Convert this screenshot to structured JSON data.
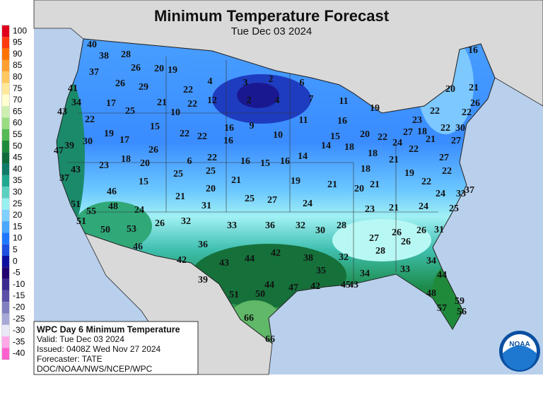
{
  "header": {
    "title": "Minimum Temperature Forecast",
    "subtitle": "Tue Dec 03 2024"
  },
  "legend": {
    "labels": [
      100,
      95,
      90,
      85,
      80,
      75,
      70,
      65,
      60,
      55,
      50,
      45,
      40,
      35,
      30,
      25,
      20,
      15,
      10,
      5,
      0,
      -5,
      -10,
      -15,
      -20,
      -25,
      -30,
      -35,
      -40
    ],
    "colors": [
      "#e0001c",
      "#ff3a10",
      "#ff7400",
      "#ffa030",
      "#ffc860",
      "#ffe89a",
      "#ffffd0",
      "#cdf0b0",
      "#99dd80",
      "#55bb55",
      "#1f8a3a",
      "#0f6b3a",
      "#127a6a",
      "#20a890",
      "#5cd0c0",
      "#99f0f0",
      "#7fd0ff",
      "#4aa8ff",
      "#1f78ff",
      "#1f50e0",
      "#1010a0",
      "#200070",
      "#3a2a90",
      "#5a50a8",
      "#8080c0",
      "#a8a8d8",
      "#e8e8f8",
      "#ffa8e8",
      "#ff60d0"
    ]
  },
  "stations": [
    40,
    38,
    28,
    37,
    26,
    20,
    19,
    41,
    26,
    29,
    22,
    4,
    3,
    2,
    6,
    34,
    17,
    21,
    22,
    12,
    2,
    4,
    7,
    11,
    43,
    25,
    19,
    20,
    21,
    26,
    22,
    22,
    23,
    16,
    22,
    15,
    16,
    9,
    11,
    16,
    27,
    18,
    21,
    22,
    30,
    19,
    22,
    22,
    10,
    16,
    10,
    15,
    20,
    22,
    24,
    47,
    39,
    30,
    17,
    26,
    14,
    18,
    18,
    22,
    27,
    22,
    6,
    16,
    15,
    16,
    14,
    21,
    27,
    18,
    23,
    20,
    43,
    25,
    25,
    18,
    19,
    22,
    37,
    15,
    21,
    19,
    21,
    20,
    21,
    22,
    46,
    20,
    24,
    37,
    33,
    21,
    25,
    27,
    24,
    51,
    55,
    48,
    24,
    31,
    23,
    21,
    24,
    25,
    51,
    26,
    32,
    33,
    36,
    32,
    30,
    28,
    50,
    53,
    27,
    26,
    26,
    26,
    31,
    46,
    36,
    28,
    42,
    43,
    44,
    42,
    38,
    32,
    34,
    35,
    34,
    33,
    44,
    39,
    51,
    50,
    44,
    47,
    42,
    45,
    43,
    48,
    57,
    59,
    56,
    66,
    66
  ],
  "info_box": {
    "lines": [
      "WPC Day 6 Minimum Temperature",
      "Valid: Tue Dec 03 2024",
      "Issued: 0408Z Wed Nov 27 2024",
      "Forecaster: TATE",
      "DOC/NOAA/NWS/NCEP/WPC"
    ]
  },
  "logo": "NOAA"
}
